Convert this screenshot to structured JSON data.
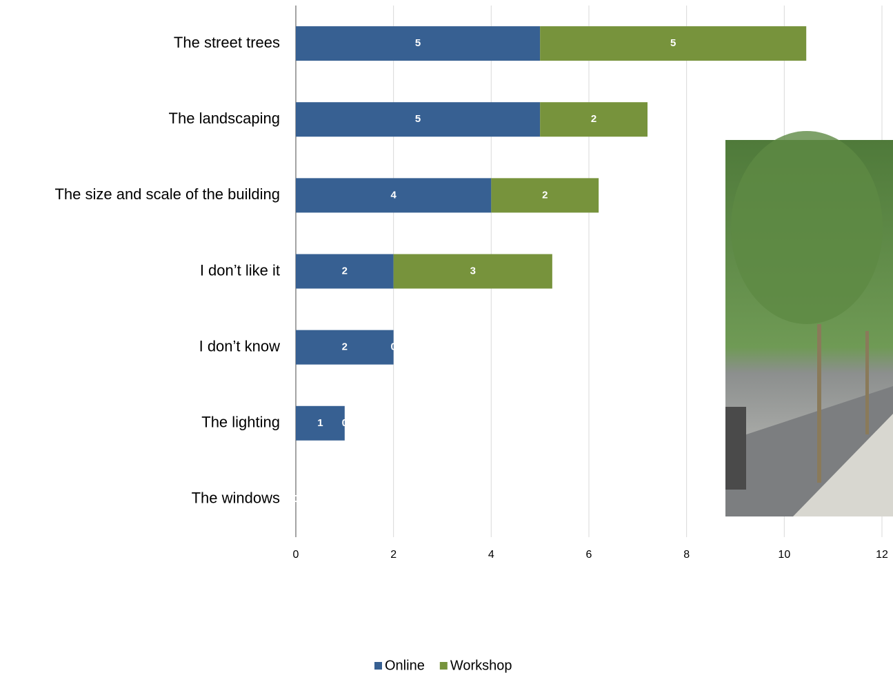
{
  "chart_data": {
    "type": "stacked-bar-horizontal",
    "categories": [
      "The street trees",
      "The landscaping",
      "The size and scale of the building",
      "I don’t like it",
      "I don’t know",
      "The lighting",
      "The windows"
    ],
    "series": [
      {
        "name": "Online",
        "color": "#376092",
        "values": [
          5,
          5,
          4,
          2,
          2,
          1,
          0
        ],
        "value_labels": [
          "5",
          "5",
          "4",
          "2",
          "2",
          "1",
          "0"
        ]
      },
      {
        "name": "Workshop",
        "color": "#77933c",
        "values": [
          5.45,
          2.2,
          2.2,
          3.25,
          0,
          0,
          0
        ],
        "value_labels": [
          "5",
          "2",
          "2",
          "3",
          "0",
          "0",
          "0"
        ]
      }
    ],
    "xlim": [
      0,
      12
    ],
    "xticks": [
      0,
      2,
      4,
      6,
      8,
      10,
      12
    ],
    "grid": true,
    "legend": "bottom"
  }
}
